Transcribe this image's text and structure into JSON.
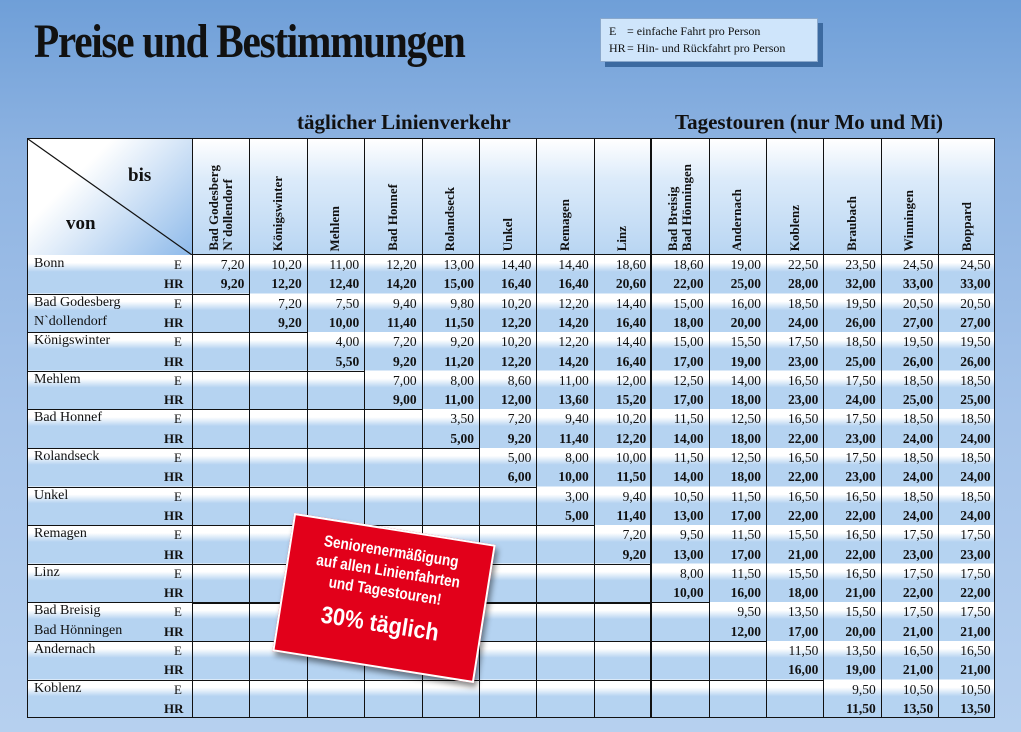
{
  "title": "Preise und Bestimmungen",
  "legend": [
    {
      "code": "E",
      "text": "= einfache Fahrt pro Person"
    },
    {
      "code": "HR",
      "text": "= Hin- und Rückfahrt pro Person"
    }
  ],
  "sections": {
    "left": "täglicher Linienverkehr",
    "right": "Tagestouren (nur Mo und Mi)"
  },
  "corner": {
    "bis": "bis",
    "von": "von"
  },
  "columns": [
    "Bad Godesberg\nN`dollendorf",
    "Königswinter",
    "Mehlem",
    "Bad Honnef",
    "Rolandseck",
    "Unkel",
    "Remagen",
    "Linz",
    "Bad Breisig\nBad Hönningen",
    "Andernach",
    "Koblenz",
    "Braubach",
    "Winningen",
    "Boppard"
  ],
  "rows": [
    {
      "from": [
        "Bonn"
      ],
      "E": [
        "7,20",
        "10,20",
        "11,00",
        "12,20",
        "13,00",
        "14,40",
        "14,40",
        "18,60",
        "18,60",
        "19,00",
        "22,50",
        "23,50",
        "24,50",
        "24,50"
      ],
      "HR": [
        "9,20",
        "12,20",
        "12,40",
        "14,20",
        "15,00",
        "16,40",
        "16,40",
        "20,60",
        "22,00",
        "25,00",
        "28,00",
        "32,00",
        "33,00",
        "33,00"
      ]
    },
    {
      "from": [
        "Bad Godesberg",
        "N`dollendorf"
      ],
      "E": [
        "",
        "7,20",
        "7,50",
        "9,40",
        "9,80",
        "10,20",
        "12,20",
        "14,40",
        "15,00",
        "16,00",
        "18,50",
        "19,50",
        "20,50",
        "20,50"
      ],
      "HR": [
        "",
        "9,20",
        "10,00",
        "11,40",
        "11,50",
        "12,20",
        "14,20",
        "16,40",
        "18,00",
        "20,00",
        "24,00",
        "26,00",
        "27,00",
        "27,00"
      ]
    },
    {
      "from": [
        "Königswinter"
      ],
      "E": [
        "",
        "",
        "4,00",
        "7,20",
        "9,20",
        "10,20",
        "12,20",
        "14,40",
        "15,00",
        "15,50",
        "17,50",
        "18,50",
        "19,50",
        "19,50"
      ],
      "HR": [
        "",
        "",
        "5,50",
        "9,20",
        "11,20",
        "12,20",
        "14,20",
        "16,40",
        "17,00",
        "19,00",
        "23,00",
        "25,00",
        "26,00",
        "26,00"
      ]
    },
    {
      "from": [
        "Mehlem"
      ],
      "E": [
        "",
        "",
        "",
        "7,00",
        "8,00",
        "8,60",
        "11,00",
        "12,00",
        "12,50",
        "14,00",
        "16,50",
        "17,50",
        "18,50",
        "18,50"
      ],
      "HR": [
        "",
        "",
        "",
        "9,00",
        "11,00",
        "12,00",
        "13,60",
        "15,20",
        "17,00",
        "18,00",
        "23,00",
        "24,00",
        "25,00",
        "25,00"
      ]
    },
    {
      "from": [
        "Bad Honnef"
      ],
      "E": [
        "",
        "",
        "",
        "",
        "3,50",
        "7,20",
        "9,40",
        "10,20",
        "11,50",
        "12,50",
        "16,50",
        "17,50",
        "18,50",
        "18,50"
      ],
      "HR": [
        "",
        "",
        "",
        "",
        "5,00",
        "9,20",
        "11,40",
        "12,20",
        "14,00",
        "18,00",
        "22,00",
        "23,00",
        "24,00",
        "24,00"
      ]
    },
    {
      "from": [
        "Rolandseck"
      ],
      "E": [
        "",
        "",
        "",
        "",
        "",
        "5,00",
        "8,00",
        "10,00",
        "11,50",
        "12,50",
        "16,50",
        "17,50",
        "18,50",
        "18,50"
      ],
      "HR": [
        "",
        "",
        "",
        "",
        "",
        "6,00",
        "10,00",
        "11,50",
        "14,00",
        "18,00",
        "22,00",
        "23,00",
        "24,00",
        "24,00"
      ]
    },
    {
      "from": [
        "Unkel"
      ],
      "E": [
        "",
        "",
        "",
        "",
        "",
        "",
        "3,00",
        "9,40",
        "10,50",
        "11,50",
        "16,50",
        "16,50",
        "18,50",
        "18,50"
      ],
      "HR": [
        "",
        "",
        "",
        "",
        "",
        "",
        "5,00",
        "11,40",
        "13,00",
        "17,00",
        "22,00",
        "22,00",
        "24,00",
        "24,00"
      ]
    },
    {
      "from": [
        "Remagen"
      ],
      "E": [
        "",
        "",
        "",
        "",
        "",
        "",
        "",
        "7,20",
        "9,50",
        "11,50",
        "15,50",
        "16,50",
        "17,50",
        "17,50"
      ],
      "HR": [
        "",
        "",
        "",
        "",
        "",
        "",
        "",
        "9,20",
        "13,00",
        "17,00",
        "21,00",
        "22,00",
        "23,00",
        "23,00"
      ]
    },
    {
      "from": [
        "Linz"
      ],
      "E": [
        "",
        "",
        "",
        "",
        "",
        "",
        "",
        "",
        "8,00",
        "11,50",
        "15,50",
        "16,50",
        "17,50",
        "17,50"
      ],
      "HR": [
        "",
        "",
        "",
        "",
        "",
        "",
        "",
        "",
        "10,00",
        "16,00",
        "18,00",
        "21,00",
        "22,00",
        "22,00"
      ]
    },
    {
      "from": [
        "Bad Breisig",
        "Bad Hönningen"
      ],
      "E": [
        "",
        "",
        "",
        "",
        "",
        "",
        "",
        "",
        "",
        "9,50",
        "13,50",
        "15,50",
        "17,50",
        "17,50"
      ],
      "HR": [
        "",
        "",
        "",
        "",
        "",
        "",
        "",
        "",
        "",
        "12,00",
        "17,00",
        "20,00",
        "21,00",
        "21,00"
      ]
    },
    {
      "from": [
        "Andernach"
      ],
      "E": [
        "",
        "",
        "",
        "",
        "",
        "",
        "",
        "",
        "",
        "",
        "11,50",
        "13,50",
        "16,50",
        "16,50"
      ],
      "HR": [
        "",
        "",
        "",
        "",
        "",
        "",
        "",
        "",
        "",
        "",
        "16,00",
        "19,00",
        "21,00",
        "21,00"
      ]
    },
    {
      "from": [
        "Koblenz"
      ],
      "E": [
        "",
        "",
        "",
        "",
        "",
        "",
        "",
        "",
        "",
        "",
        "",
        "9,50",
        "10,50",
        "10,50"
      ],
      "HR": [
        "",
        "",
        "",
        "",
        "",
        "",
        "",
        "",
        "",
        "",
        "",
        "11,50",
        "13,50",
        "13,50"
      ]
    }
  ],
  "kind_labels": {
    "E": "E",
    "HR": "HR"
  },
  "badge": {
    "lines": [
      "Seniorenermäßigung",
      "auf allen Linienfahrten",
      "und Tagestouren!"
    ],
    "highlight": "30% täglich"
  },
  "colors": {
    "background": "#8fb4e2",
    "stripe": "#b5d3f1",
    "badge": "#e2001a"
  }
}
